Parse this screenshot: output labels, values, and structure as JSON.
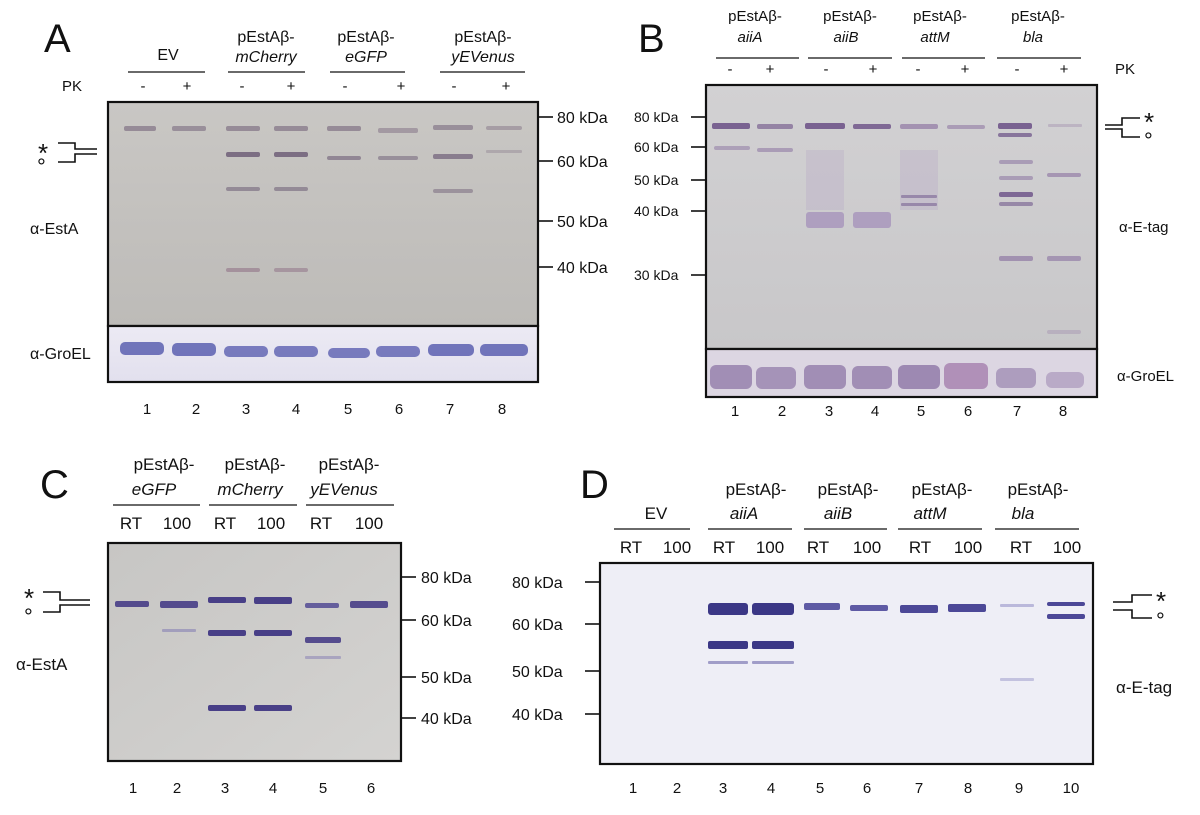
{
  "panels": [
    {
      "letter": "A",
      "group_headers": [
        {
          "line1": "EV",
          "line2": ""
        },
        {
          "line1": "pEstAβ-",
          "line2": "mCherry"
        },
        {
          "line1": "pEstAβ-",
          "line2": "eGFP"
        },
        {
          "line1": "pEstAβ-",
          "line2": "yEVenus"
        }
      ],
      "condition_label": "PK",
      "lane_conditions": [
        "-",
        "+",
        "-",
        "+",
        "-",
        "+",
        "-",
        "+"
      ],
      "lanes": [
        "1",
        "2",
        "3",
        "4",
        "5",
        "6",
        "7",
        "8"
      ],
      "markers": [
        "80 kDa",
        "60 kDa",
        "50 kDa",
        "40 kDa"
      ],
      "blot_labels": [
        "α-EstA",
        "α-GroEL"
      ],
      "symbols": [
        "*",
        "°"
      ]
    },
    {
      "letter": "B",
      "group_headers": [
        {
          "line1": "pEstAβ-",
          "line2": "aiiA"
        },
        {
          "line1": "pEstAβ-",
          "line2": "aiiB"
        },
        {
          "line1": "pEstAβ-",
          "line2": "attM"
        },
        {
          "line1": "pEstAβ-",
          "line2": "bla"
        }
      ],
      "condition_label": "PK",
      "lane_conditions": [
        "-",
        "+",
        "-",
        "+",
        "-",
        "+",
        "-",
        "+"
      ],
      "lanes": [
        "1",
        "2",
        "3",
        "4",
        "5",
        "6",
        "7",
        "8"
      ],
      "markers": [
        "80 kDa",
        "60 kDa",
        "50 kDa",
        "40 kDa",
        "30 kDa"
      ],
      "blot_labels": [
        "α-E-tag",
        "α-GroEL"
      ],
      "symbols": [
        "*",
        "°"
      ]
    },
    {
      "letter": "C",
      "group_headers": [
        {
          "line1": "pEstAβ-",
          "line2": "eGFP"
        },
        {
          "line1": "pEstAβ-",
          "line2": "mCherry"
        },
        {
          "line1": "pEstAβ-",
          "line2": "yEVenus"
        }
      ],
      "lane_conditions": [
        "RT",
        "100",
        "RT",
        "100",
        "RT",
        "100"
      ],
      "lanes": [
        "1",
        "2",
        "3",
        "4",
        "5",
        "6"
      ],
      "markers": [
        "80 kDa",
        "60 kDa",
        "50 kDa",
        "40 kDa"
      ],
      "blot_labels": [
        "α-EstA"
      ],
      "symbols": [
        "*",
        "°"
      ]
    },
    {
      "letter": "D",
      "group_headers": [
        {
          "line1": "EV",
          "line2": ""
        },
        {
          "line1": "pEstAβ-",
          "line2": "aiiA"
        },
        {
          "line1": "pEstAβ-",
          "line2": "aiiB"
        },
        {
          "line1": "pEstAβ-",
          "line2": "attM"
        },
        {
          "line1": "pEstAβ-",
          "line2": "bla"
        }
      ],
      "lane_conditions": [
        "RT",
        "100",
        "RT",
        "100",
        "RT",
        "100",
        "RT",
        "100",
        "RT",
        "100"
      ],
      "lanes": [
        "1",
        "2",
        "3",
        "4",
        "5",
        "6",
        "7",
        "8",
        "9",
        "10"
      ],
      "markers": [
        "80 kDa",
        "60 kDa",
        "50 kDa",
        "40 kDa"
      ],
      "blot_labels": [
        "α-E-tag"
      ],
      "symbols": [
        "*",
        "°"
      ]
    }
  ]
}
